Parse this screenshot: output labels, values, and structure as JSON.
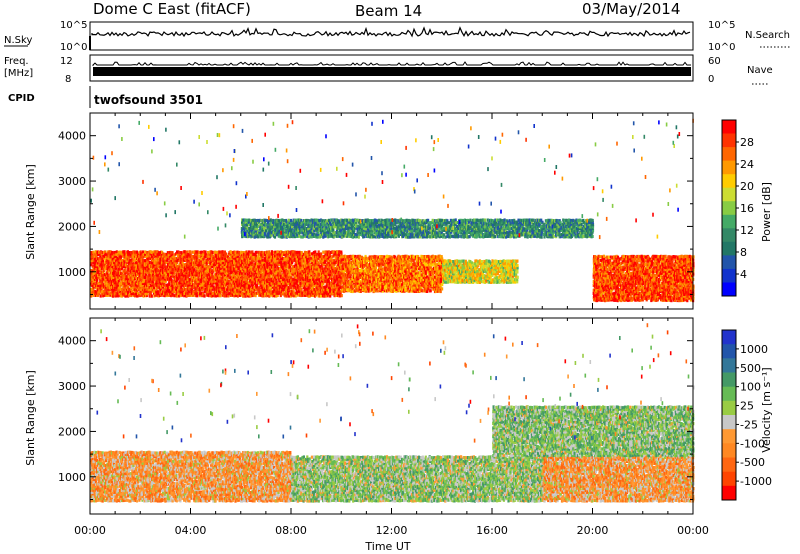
{
  "header": {
    "station": "Dome C East (fitACF)",
    "beam": "Beam 14",
    "date": "03/May/2014"
  },
  "aux_panels": {
    "nsky_label": "N.Sky",
    "nsearch_label": "N.Search",
    "nsky_ticks": [
      "10^5",
      "10^0"
    ],
    "freq_label_1": "Freq.",
    "freq_label_2": "[MHz]",
    "freq_ticks": [
      "12",
      "8"
    ],
    "nave_label": "Nave",
    "nave_ticks": [
      "60",
      "0"
    ],
    "cpid_label": "CPID",
    "cpid_value": "twofsound 3501"
  },
  "colorbars": {
    "power": {
      "label": "Power [dB]",
      "ticks": [
        "28",
        "24",
        "20",
        "16",
        "12",
        "8",
        "4"
      ],
      "colors": [
        "#ff0000",
        "#ff3300",
        "#ff6600",
        "#ff9900",
        "#ffcc00",
        "#ccdd33",
        "#88cc44",
        "#44aa66",
        "#338866",
        "#227766",
        "#2255aa",
        "#1133cc",
        "#0000ff"
      ]
    },
    "velocity": {
      "label": "Velocity [m s⁻¹]",
      "ticks": [
        "1000",
        "500",
        "100",
        "25",
        "-25",
        "-100",
        "-500",
        "-1000"
      ],
      "colors": [
        "#2233cc",
        "#2255aa",
        "#337799",
        "#449966",
        "#66bb55",
        "#99cc44",
        "#c8c8c8",
        "#ff9933",
        "#ff8822",
        "#ff6611",
        "#ff4400",
        "#ff0000"
      ]
    }
  },
  "chart_data": [
    {
      "type": "heatmap",
      "name": "power",
      "ylabel": "Slant Range [km]",
      "xlabel": "Time UT",
      "x_ticks": [
        "00:00",
        "04:00",
        "08:00",
        "12:00",
        "16:00",
        "20:00",
        "00:00"
      ],
      "y_ticks": [
        "1000",
        "2000",
        "3000",
        "4000"
      ],
      "xlim": [
        0,
        24
      ],
      "ylim": [
        180,
        4500
      ],
      "colorbar_range": [
        0,
        30
      ],
      "bands": [
        {
          "t_start": 0,
          "t_end": 10,
          "range_low": 500,
          "range_high": 1500,
          "value": 26
        },
        {
          "t_start": 10,
          "t_end": 14,
          "range_low": 600,
          "range_high": 1400,
          "value": 24
        },
        {
          "t_start": 14,
          "t_end": 17,
          "range_low": 800,
          "range_high": 1300,
          "value": 18
        },
        {
          "t_start": 20,
          "t_end": 24,
          "range_low": 400,
          "range_high": 1400,
          "value": 26
        },
        {
          "t_start": 6,
          "t_end": 20,
          "range_low": 1800,
          "range_high": 2200,
          "value": 10
        }
      ]
    },
    {
      "type": "heatmap",
      "name": "velocity",
      "ylabel": "Slant Range [km]",
      "xlabel": "Time UT",
      "x_ticks": [
        "00:00",
        "04:00",
        "08:00",
        "12:00",
        "16:00",
        "20:00",
        "00:00"
      ],
      "y_ticks": [
        "1000",
        "2000",
        "3000",
        "4000"
      ],
      "xlim": [
        0,
        24
      ],
      "ylim": [
        180,
        4500
      ],
      "colorbar_range": [
        -1000,
        1000
      ],
      "bands": [
        {
          "t_start": 0,
          "t_end": 8,
          "range_low": 500,
          "range_high": 1600,
          "value": -300
        },
        {
          "t_start": 8,
          "t_end": 18,
          "range_low": 500,
          "range_high": 1500,
          "value": 100
        },
        {
          "t_start": 18,
          "t_end": 24,
          "range_low": 500,
          "range_high": 1500,
          "value": -300
        },
        {
          "t_start": 16,
          "t_end": 24,
          "range_low": 1500,
          "range_high": 2600,
          "value": 150
        }
      ]
    }
  ]
}
